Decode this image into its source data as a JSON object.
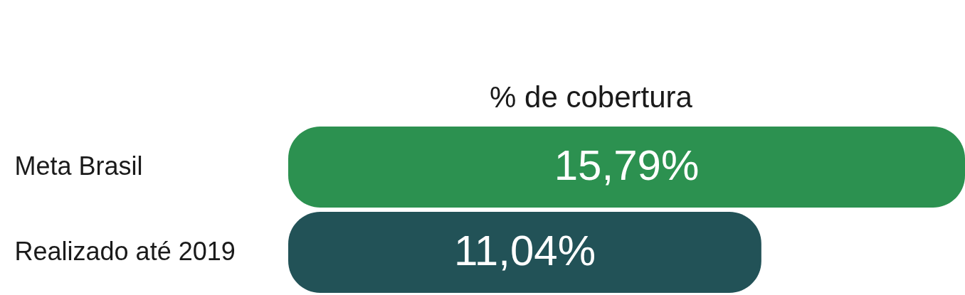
{
  "chart_data": {
    "type": "bar",
    "orientation": "horizontal",
    "title": "% de cobertura",
    "categories": [
      "Meta Brasil",
      "Realizado até 2019"
    ],
    "values": [
      15.79,
      11.04
    ],
    "colors": [
      "#2c9150",
      "#225257"
    ],
    "value_labels": [
      "15,79%",
      "11,04%"
    ]
  }
}
